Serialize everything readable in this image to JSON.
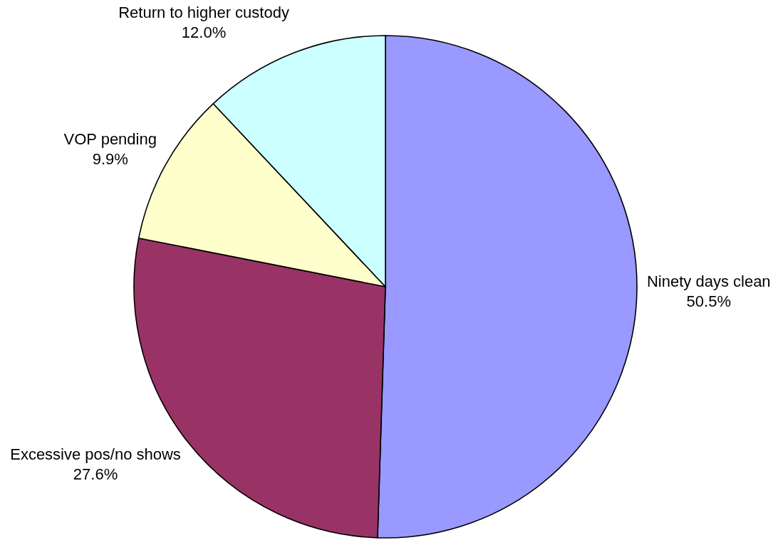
{
  "chart_data": {
    "type": "pie",
    "categories": [
      "Ninety days clean",
      "Excessive pos/no shows",
      "VOP pending",
      "Return to higher custody"
    ],
    "values": [
      50.5,
      27.6,
      9.9,
      12.0
    ],
    "value_labels": [
      "50.5%",
      "27.6%",
      "9.9%",
      "12.0%"
    ],
    "colors": [
      "#9999ff",
      "#993366",
      "#ffffcc",
      "#ccffff"
    ]
  }
}
